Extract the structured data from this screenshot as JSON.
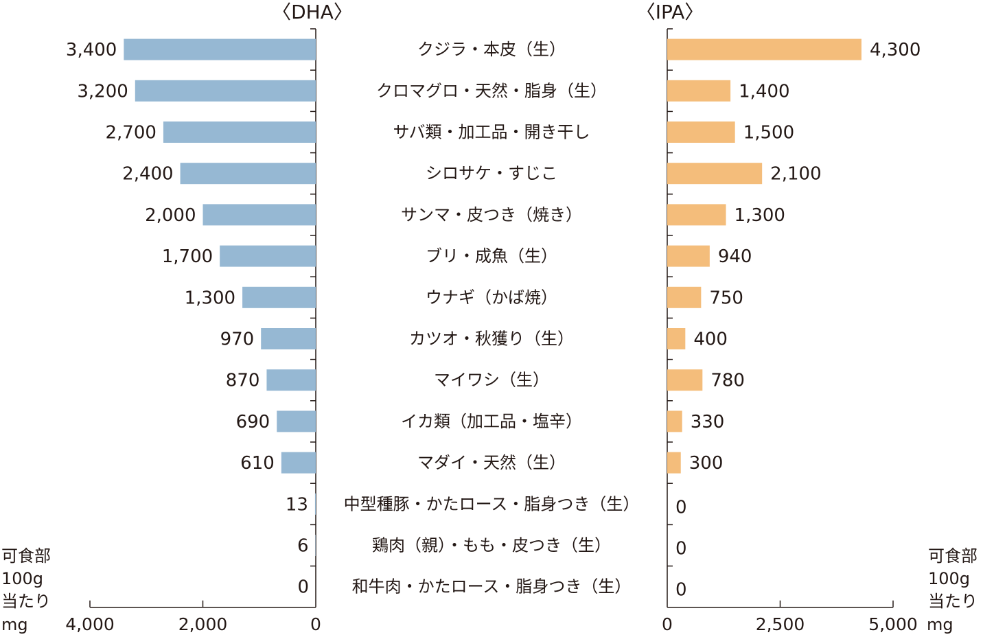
{
  "chart_data": [
    {
      "type": "bar",
      "orientation": "horizontal",
      "direction": "leftward",
      "title": "〈DHA〉",
      "categories": [
        "クジラ・本皮（生）",
        "クロマグロ・天然・脂身（生）",
        "サバ類・加工品・開き干し",
        "シロサケ・すじこ",
        "サンマ・皮つき（焼き）",
        "ブリ・成魚（生）",
        "ウナギ（かば焼）",
        "カツオ・秋獲り（生）",
        "マイワシ（生）",
        "イカ類（加工品・塩辛）",
        "マダイ・天然（生）",
        "中型種豚・かたロース・脂身つき（生）",
        "鶏肉（親）・もも・皮つき（生）",
        "和牛肉・かたロース・脂身つき（生）"
      ],
      "values": [
        3400,
        3200,
        2700,
        2400,
        2000,
        1700,
        1300,
        970,
        870,
        690,
        610,
        13,
        6,
        0
      ],
      "value_labels": [
        "3,400",
        "3,200",
        "2,700",
        "2,400",
        "2,000",
        "1,700",
        "1,300",
        "970",
        "870",
        "690",
        "610",
        "13",
        "6",
        "0"
      ],
      "xlim": [
        0,
        4000
      ],
      "xticks": [
        "4,000",
        "2,000",
        "0"
      ],
      "xtick_values": [
        4000,
        2000,
        0
      ],
      "xlabel": [
        "可食部",
        "100g",
        "当たり",
        "mg"
      ],
      "color": "#96b8d3",
      "grid": false
    },
    {
      "type": "bar",
      "orientation": "horizontal",
      "direction": "rightward",
      "title": "〈IPA〉",
      "values": [
        4300,
        1400,
        1500,
        2100,
        1300,
        940,
        750,
        400,
        780,
        330,
        300,
        0,
        0,
        0
      ],
      "value_labels": [
        "4,300",
        "1,400",
        "1,500",
        "2,100",
        "1,300",
        "940",
        "750",
        "400",
        "780",
        "330",
        "300",
        "0",
        "0",
        "0"
      ],
      "xlim": [
        0,
        5000
      ],
      "xticks": [
        "0",
        "2,500",
        "5,000"
      ],
      "xtick_values": [
        0,
        2500,
        5000
      ],
      "xlabel": [
        "可食部",
        "100g",
        "当たり",
        "mg"
      ],
      "color": "#f4bd7b",
      "grid": false
    }
  ]
}
